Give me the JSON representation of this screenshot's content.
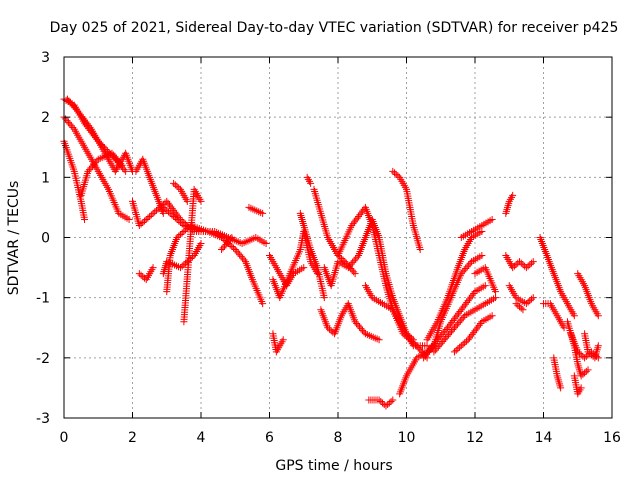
{
  "chart_data": {
    "type": "scatter",
    "title": "Day 025 of 2021, Sidereal Day-to-day VTEC variation (SDTVAR) for receiver p425",
    "xlabel": "GPS time / hours",
    "ylabel": "SDTVAR / TECUs",
    "xlim": [
      0,
      16
    ],
    "ylim": [
      -3,
      3
    ],
    "xticks": [
      0,
      2,
      4,
      6,
      8,
      10,
      12,
      14,
      16
    ],
    "yticks": [
      -3,
      -2,
      -1,
      0,
      1,
      2,
      3
    ],
    "xtick_labels": [
      "0",
      "2",
      "4",
      "6",
      "8",
      "10",
      "12",
      "14",
      "16"
    ],
    "ytick_labels": [
      "-3",
      "-2",
      "-1",
      "0",
      "1",
      "2",
      "3"
    ],
    "grid": true,
    "marker": "+",
    "series": [
      {
        "name": "SDTVAR",
        "color": "#ff0000",
        "tracks": [
          [
            [
              0.0,
              2.3
            ],
            [
              0.3,
              2.2
            ],
            [
              0.6,
              1.9
            ],
            [
              1.0,
              1.6
            ],
            [
              1.5,
              1.3
            ],
            [
              1.8,
              1.1
            ]
          ],
          [
            [
              0.0,
              2.0
            ],
            [
              0.3,
              1.8
            ],
            [
              0.7,
              1.4
            ],
            [
              1.0,
              1.1
            ],
            [
              1.3,
              0.8
            ],
            [
              1.6,
              0.4
            ],
            [
              1.9,
              0.3
            ]
          ],
          [
            [
              0.0,
              1.6
            ],
            [
              0.3,
              1.1
            ],
            [
              0.5,
              0.6
            ],
            [
              0.6,
              0.3
            ]
          ],
          [
            [
              0.1,
              2.3
            ],
            [
              0.4,
              2.1
            ],
            [
              0.8,
              1.8
            ],
            [
              1.2,
              1.4
            ],
            [
              1.5,
              1.1
            ],
            [
              1.8,
              1.4
            ],
            [
              2.0,
              1.1
            ]
          ],
          [
            [
              0.5,
              0.7
            ],
            [
              0.7,
              1.1
            ],
            [
              1.0,
              1.3
            ],
            [
              1.4,
              1.4
            ],
            [
              1.7,
              1.2
            ]
          ],
          [
            [
              2.1,
              1.1
            ],
            [
              2.3,
              1.3
            ],
            [
              2.5,
              1.0
            ],
            [
              2.7,
              0.7
            ],
            [
              2.9,
              0.4
            ]
          ],
          [
            [
              2.0,
              0.6
            ],
            [
              2.2,
              0.2
            ],
            [
              2.6,
              0.4
            ],
            [
              3.0,
              0.6
            ],
            [
              3.4,
              0.3
            ],
            [
              3.8,
              0.1
            ],
            [
              4.0,
              0.1
            ]
          ],
          [
            [
              2.2,
              -0.6
            ],
            [
              2.4,
              -0.7
            ],
            [
              2.6,
              -0.5
            ]
          ],
          [
            [
              2.9,
              -0.6
            ],
            [
              3.0,
              -0.4
            ],
            [
              3.4,
              -0.5
            ],
            [
              3.8,
              -0.3
            ],
            [
              4.0,
              -0.1
            ]
          ],
          [
            [
              2.9,
              0.5
            ],
            [
              3.1,
              0.4
            ],
            [
              3.5,
              0.2
            ],
            [
              4.0,
              0.1
            ],
            [
              4.4,
              0.1
            ],
            [
              4.8,
              0.0
            ],
            [
              5.2,
              -0.1
            ],
            [
              5.6,
              0.0
            ],
            [
              5.9,
              -0.1
            ]
          ],
          [
            [
              3.0,
              -0.9
            ],
            [
              3.1,
              -0.3
            ],
            [
              3.3,
              0.0
            ],
            [
              3.7,
              0.2
            ],
            [
              4.2,
              0.1
            ],
            [
              4.6,
              0.0
            ],
            [
              5.0,
              -0.2
            ],
            [
              5.3,
              -0.4
            ],
            [
              5.5,
              -0.7
            ],
            [
              5.8,
              -1.1
            ]
          ],
          [
            [
              3.2,
              0.9
            ],
            [
              3.4,
              0.8
            ],
            [
              3.6,
              0.6
            ]
          ],
          [
            [
              3.5,
              -1.4
            ],
            [
              3.8,
              0.8
            ],
            [
              4.0,
              0.6
            ]
          ],
          [
            [
              4.6,
              -0.2
            ],
            [
              4.9,
              0.0
            ]
          ],
          [
            [
              5.4,
              0.5
            ],
            [
              5.8,
              0.4
            ]
          ],
          [
            [
              6.0,
              -0.3
            ],
            [
              6.2,
              -0.5
            ],
            [
              6.5,
              -0.8
            ],
            [
              6.7,
              -0.6
            ],
            [
              7.0,
              -0.5
            ]
          ],
          [
            [
              6.1,
              -1.6
            ],
            [
              6.2,
              -1.9
            ],
            [
              6.4,
              -1.7
            ]
          ],
          [
            [
              6.1,
              -0.7
            ],
            [
              6.3,
              -1.0
            ],
            [
              6.6,
              -0.6
            ],
            [
              6.9,
              -0.2
            ],
            [
              7.0,
              0.1
            ],
            [
              7.2,
              -0.4
            ],
            [
              7.4,
              -0.6
            ]
          ],
          [
            [
              6.9,
              0.4
            ],
            [
              7.0,
              0.2
            ],
            [
              7.2,
              -0.2
            ],
            [
              7.4,
              -0.5
            ],
            [
              7.6,
              -1.0
            ]
          ],
          [
            [
              7.1,
              1.0
            ],
            [
              7.2,
              0.9
            ]
          ],
          [
            [
              7.3,
              0.8
            ],
            [
              7.5,
              0.4
            ],
            [
              7.7,
              0.0
            ],
            [
              8.0,
              -0.3
            ],
            [
              8.2,
              -0.4
            ],
            [
              8.5,
              -0.6
            ]
          ],
          [
            [
              7.5,
              -1.2
            ],
            [
              7.7,
              -1.5
            ],
            [
              7.9,
              -1.6
            ],
            [
              8.1,
              -1.3
            ],
            [
              8.3,
              -1.1
            ],
            [
              8.5,
              -1.4
            ],
            [
              8.8,
              -1.6
            ],
            [
              9.2,
              -1.7
            ]
          ],
          [
            [
              7.6,
              -0.5
            ],
            [
              7.8,
              -0.8
            ],
            [
              8.0,
              -0.4
            ],
            [
              8.3,
              -0.5
            ],
            [
              8.6,
              -0.3
            ],
            [
              8.8,
              0.0
            ],
            [
              9.0,
              0.3
            ],
            [
              9.2,
              0.0
            ],
            [
              9.4,
              -0.6
            ],
            [
              9.6,
              -1.0
            ],
            [
              9.8,
              -1.3
            ],
            [
              10.0,
              -1.6
            ],
            [
              10.2,
              -1.7
            ]
          ],
          [
            [
              8.0,
              -0.3
            ],
            [
              8.4,
              0.2
            ],
            [
              8.8,
              0.5
            ],
            [
              9.0,
              0.2
            ],
            [
              9.2,
              -0.3
            ],
            [
              9.4,
              -0.8
            ],
            [
              9.6,
              -1.2
            ],
            [
              9.9,
              -1.5
            ],
            [
              10.2,
              -1.8
            ],
            [
              10.6,
              -1.8
            ]
          ],
          [
            [
              8.8,
              -0.8
            ],
            [
              9.0,
              -1.0
            ],
            [
              9.3,
              -1.1
            ],
            [
              9.6,
              -1.2
            ],
            [
              9.9,
              -1.6
            ],
            [
              10.3,
              -1.8
            ],
            [
              10.6,
              -2.0
            ]
          ],
          [
            [
              8.9,
              -2.7
            ],
            [
              9.2,
              -2.7
            ],
            [
              9.4,
              -2.8
            ],
            [
              9.6,
              -2.7
            ]
          ],
          [
            [
              9.6,
              1.1
            ],
            [
              9.8,
              1.0
            ],
            [
              10.0,
              0.8
            ],
            [
              10.2,
              0.2
            ],
            [
              10.4,
              -0.2
            ]
          ],
          [
            [
              9.8,
              -2.6
            ],
            [
              10.0,
              -2.3
            ],
            [
              10.3,
              -2.0
            ],
            [
              10.6,
              -1.9
            ],
            [
              10.9,
              -1.7
            ],
            [
              11.2,
              -1.5
            ],
            [
              11.6,
              -1.2
            ],
            [
              12.0,
              -0.9
            ],
            [
              12.3,
              -0.8
            ]
          ],
          [
            [
              10.5,
              -2.0
            ],
            [
              10.8,
              -1.8
            ],
            [
              11.0,
              -1.4
            ],
            [
              11.3,
              -1.0
            ],
            [
              11.6,
              -0.6
            ],
            [
              11.9,
              -0.4
            ],
            [
              12.2,
              -0.3
            ]
          ],
          [
            [
              10.6,
              -1.7
            ],
            [
              10.9,
              -1.4
            ],
            [
              11.2,
              -1.0
            ],
            [
              11.5,
              -0.5
            ],
            [
              11.7,
              -0.2
            ],
            [
              11.9,
              0.0
            ],
            [
              12.2,
              0.1
            ]
          ],
          [
            [
              10.8,
              -1.9
            ],
            [
              11.1,
              -1.7
            ],
            [
              11.4,
              -1.5
            ],
            [
              11.7,
              -1.3
            ],
            [
              12.0,
              -1.2
            ],
            [
              12.3,
              -1.1
            ],
            [
              12.6,
              -1.0
            ]
          ],
          [
            [
              11.4,
              -1.9
            ],
            [
              11.8,
              -1.7
            ],
            [
              12.2,
              -1.4
            ],
            [
              12.5,
              -1.3
            ]
          ],
          [
            [
              11.6,
              0.0
            ],
            [
              11.9,
              0.1
            ],
            [
              12.2,
              0.2
            ],
            [
              12.5,
              0.3
            ]
          ],
          [
            [
              12.0,
              -0.6
            ],
            [
              12.3,
              -0.5
            ],
            [
              12.6,
              -0.9
            ]
          ],
          [
            [
              12.9,
              0.4
            ],
            [
              13.0,
              0.6
            ],
            [
              13.1,
              0.7
            ]
          ],
          [
            [
              12.9,
              -0.3
            ],
            [
              13.1,
              -0.5
            ],
            [
              13.3,
              -0.4
            ],
            [
              13.5,
              -0.5
            ],
            [
              13.7,
              -0.4
            ]
          ],
          [
            [
              13.0,
              -0.8
            ],
            [
              13.2,
              -1.0
            ],
            [
              13.5,
              -1.1
            ],
            [
              13.7,
              -1.0
            ]
          ],
          [
            [
              13.2,
              -1.1
            ],
            [
              13.4,
              -1.2
            ]
          ],
          [
            [
              13.9,
              0.0
            ],
            [
              14.1,
              -0.3
            ],
            [
              14.3,
              -0.6
            ],
            [
              14.5,
              -0.9
            ],
            [
              14.7,
              -1.1
            ],
            [
              14.9,
              -1.3
            ]
          ],
          [
            [
              14.0,
              -1.1
            ],
            [
              14.2,
              -1.1
            ],
            [
              14.4,
              -1.3
            ],
            [
              14.6,
              -1.5
            ]
          ],
          [
            [
              14.3,
              -2.0
            ],
            [
              14.4,
              -2.3
            ],
            [
              14.5,
              -2.5
            ]
          ],
          [
            [
              14.7,
              -1.4
            ],
            [
              14.9,
              -1.8
            ],
            [
              15.0,
              -2.1
            ],
            [
              15.1,
              -2.3
            ],
            [
              15.3,
              -2.2
            ]
          ],
          [
            [
              14.8,
              -1.6
            ],
            [
              15.0,
              -1.9
            ],
            [
              15.2,
              -2.0
            ],
            [
              15.4,
              -1.9
            ],
            [
              15.6,
              -2.0
            ]
          ],
          [
            [
              14.9,
              -2.3
            ],
            [
              15.0,
              -2.6
            ],
            [
              15.1,
              -2.5
            ]
          ],
          [
            [
              15.0,
              -0.6
            ],
            [
              15.2,
              -0.8
            ],
            [
              15.4,
              -1.1
            ],
            [
              15.6,
              -1.3
            ]
          ],
          [
            [
              15.2,
              -1.6
            ],
            [
              15.3,
              -1.9
            ],
            [
              15.5,
              -2.0
            ],
            [
              15.6,
              -1.8
            ]
          ]
        ]
      }
    ]
  }
}
